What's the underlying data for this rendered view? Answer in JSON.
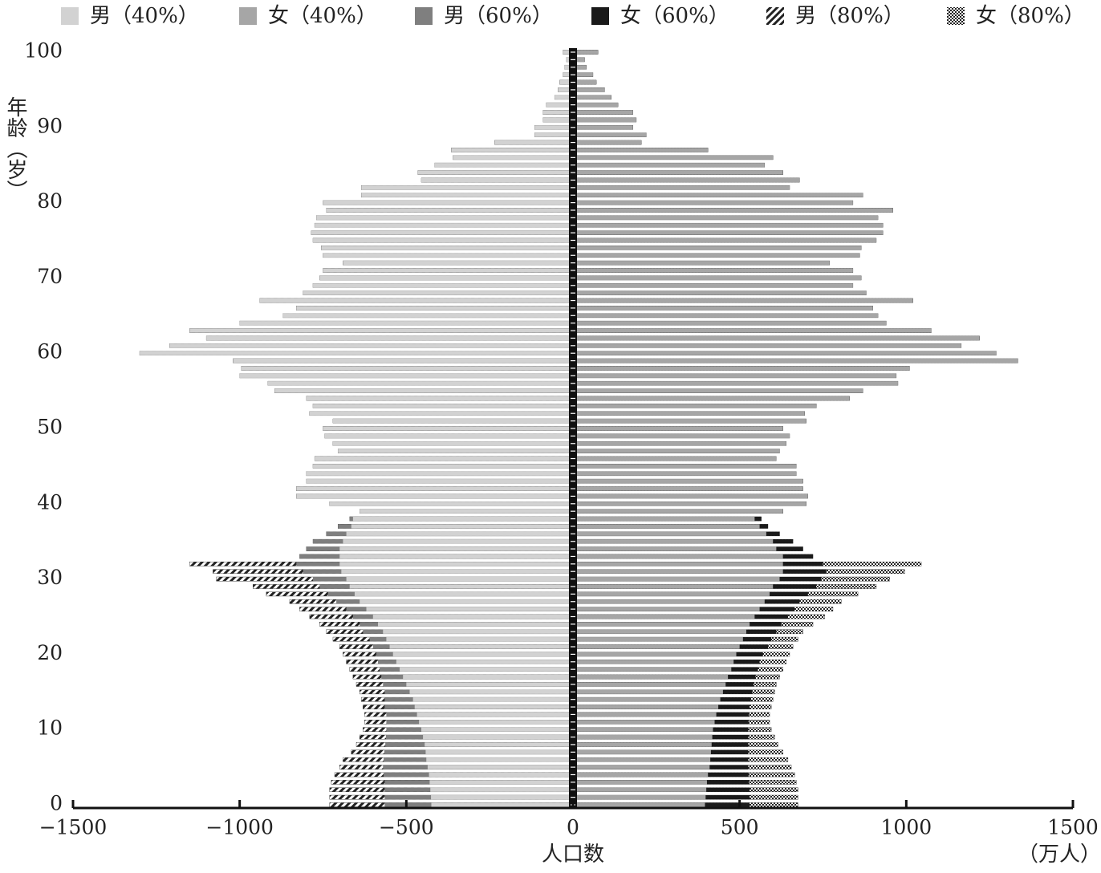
{
  "chart_data": {
    "type": "bar",
    "orientation": "horizontal",
    "y_label": "年龄（岁）",
    "x_label": "人口数",
    "x_unit": "（万人）",
    "xlim": [
      -1500,
      1500
    ],
    "xticks": [
      {
        "value": -1500,
        "label": "−1500"
      },
      {
        "value": -1000,
        "label": "−1000"
      },
      {
        "value": -500,
        "label": "−500"
      },
      0,
      500,
      1000,
      1500
    ],
    "ylim": [
      0,
      100
    ],
    "yticks": [
      0,
      10,
      20,
      30,
      40,
      50,
      60,
      70,
      80,
      90,
      100
    ],
    "y": [
      0,
      1,
      2,
      3,
      4,
      5,
      6,
      7,
      8,
      9,
      10,
      11,
      12,
      13,
      14,
      15,
      16,
      17,
      18,
      19,
      20,
      21,
      22,
      23,
      24,
      25,
      26,
      27,
      28,
      29,
      30,
      31,
      32,
      33,
      34,
      35,
      36,
      37,
      38,
      39,
      40,
      41,
      42,
      43,
      44,
      45,
      46,
      47,
      48,
      49,
      50,
      51,
      52,
      53,
      54,
      55,
      56,
      57,
      58,
      59,
      60,
      61,
      62,
      63,
      64,
      65,
      66,
      67,
      68,
      69,
      70,
      71,
      72,
      73,
      74,
      75,
      76,
      77,
      78,
      79,
      80,
      81,
      82,
      83,
      84,
      85,
      86,
      87,
      88,
      89,
      90,
      91,
      92,
      93,
      94,
      95,
      96,
      97,
      98,
      99,
      100
    ],
    "series": [
      {
        "name": "男（40%）",
        "color": "#d2d2d2",
        "pattern": "solid",
        "values": [
          -425,
          -426,
          -428,
          -430,
          -432,
          -436,
          -440,
          -442,
          -445,
          -450,
          -455,
          -462,
          -468,
          -475,
          -480,
          -490,
          -500,
          -510,
          -520,
          -530,
          -540,
          -550,
          -560,
          -570,
          -585,
          -600,
          -620,
          -640,
          -655,
          -670,
          -680,
          -695,
          -700,
          -700,
          -700,
          -690,
          -680,
          -665,
          -660,
          -640,
          -730,
          -830,
          -830,
          -800,
          -800,
          -780,
          -775,
          -705,
          -720,
          -745,
          -750,
          -720,
          -790,
          -780,
          -800,
          -895,
          -915,
          -1000,
          -995,
          -1020,
          -1300,
          -1210,
          -1100,
          -1150,
          -1000,
          -870,
          -830,
          -940,
          -810,
          -780,
          -760,
          -750,
          -690,
          -750,
          -755,
          -780,
          -785,
          -775,
          -770,
          -740,
          -750,
          -635,
          -635,
          -455,
          -465,
          -415,
          -360,
          -365,
          -235,
          -115,
          -115,
          -90,
          -90,
          -80,
          -55,
          -45,
          -40,
          -30,
          -25,
          -20,
          -30
        ]
      },
      {
        "name": "女（40%）",
        "color": "#a6a6a6",
        "pattern": "solid",
        "values": [
          396,
          398,
          400,
          402,
          405,
          410,
          412,
          414,
          416,
          418,
          420,
          425,
          430,
          436,
          442,
          450,
          458,
          465,
          475,
          482,
          490,
          500,
          510,
          520,
          530,
          545,
          560,
          575,
          590,
          600,
          620,
          630,
          630,
          630,
          610,
          600,
          580,
          560,
          545,
          630,
          700,
          705,
          690,
          690,
          670,
          670,
          610,
          620,
          640,
          650,
          630,
          700,
          695,
          730,
          830,
          870,
          975,
          970,
          1010,
          1335,
          1270,
          1165,
          1220,
          1075,
          940,
          915,
          900,
          1020,
          880,
          840,
          865,
          840,
          770,
          860,
          865,
          910,
          930,
          930,
          915,
          960,
          840,
          870,
          650,
          680,
          630,
          575,
          600,
          405,
          205,
          220,
          180,
          190,
          180,
          135,
          115,
          95,
          70,
          60,
          40,
          35,
          75
        ]
      },
      {
        "name": "男（60%）",
        "color": "#7f7f7f",
        "pattern": "solid",
        "values": [
          -565,
          -565,
          -565,
          -565,
          -568,
          -570,
          -568,
          -566,
          -563,
          -561,
          -560,
          -560,
          -560,
          -565,
          -565,
          -565,
          -570,
          -575,
          -580,
          -585,
          -590,
          -600,
          -610,
          -630,
          -640,
          -660,
          -680,
          -710,
          -735,
          -760,
          -780,
          -810,
          -830,
          -820,
          -800,
          -780,
          -740,
          -705,
          -670,
          -640,
          -730,
          -830,
          -830,
          -800,
          -800,
          -780,
          -775,
          -705,
          -720,
          -745,
          -750,
          -720,
          -790,
          -780,
          -800,
          -895,
          -915,
          -1000,
          -995,
          -1020,
          -1300,
          -1210,
          -1100,
          -1150,
          -1000,
          -870,
          -830,
          -940,
          -810,
          -780,
          -760,
          -750,
          -690,
          -750,
          -755,
          -780,
          -785,
          -775,
          -770,
          -740,
          -750,
          -635,
          -635,
          -455,
          -465,
          -415,
          -360,
          -365,
          -235,
          -115,
          -115,
          -90,
          -90,
          -80,
          -55,
          -45,
          -40,
          -30,
          -25,
          -20,
          -30
        ]
      },
      {
        "name": "女（60%）",
        "color": "#1a1a1a",
        "pattern": "solid",
        "values": [
          530,
          530,
          530,
          528,
          527,
          526,
          526,
          526,
          526,
          526,
          526,
          527,
          528,
          530,
          534,
          538,
          542,
          548,
          555,
          560,
          570,
          585,
          595,
          610,
          625,
          645,
          665,
          680,
          705,
          730,
          745,
          760,
          750,
          720,
          690,
          660,
          620,
          585,
          565,
          630,
          700,
          705,
          690,
          690,
          670,
          670,
          610,
          620,
          640,
          650,
          630,
          700,
          695,
          730,
          830,
          870,
          975,
          970,
          1010,
          1335,
          1270,
          1165,
          1220,
          1075,
          940,
          915,
          900,
          1020,
          880,
          840,
          865,
          840,
          770,
          860,
          865,
          910,
          930,
          930,
          915,
          960,
          840,
          870,
          650,
          680,
          630,
          575,
          600,
          405,
          205,
          220,
          180,
          190,
          180,
          135,
          115,
          95,
          70,
          60,
          40,
          35,
          75
        ]
      },
      {
        "name": "男（80%）",
        "color": "#222222",
        "pattern": "hatch",
        "values": [
          -730,
          -730,
          -730,
          -725,
          -715,
          -700,
          -690,
          -665,
          -650,
          -640,
          -630,
          -625,
          -625,
          -630,
          -635,
          -640,
          -650,
          -660,
          -670,
          -680,
          -690,
          -700,
          -720,
          -740,
          -760,
          -790,
          -820,
          -850,
          -920,
          -960,
          -1070,
          -1080,
          -1150,
          -820,
          -800,
          -780,
          -740,
          -705,
          -670,
          -640,
          -730,
          -830,
          -830,
          -800,
          -800,
          -780,
          -775,
          -705,
          -720,
          -745,
          -750,
          -720,
          -790,
          -780,
          -800,
          -895,
          -915,
          -1000,
          -995,
          -1020,
          -1300,
          -1210,
          -1100,
          -1150,
          -1000,
          -870,
          -830,
          -940,
          -810,
          -780,
          -760,
          -750,
          -690,
          -750,
          -755,
          -780,
          -785,
          -775,
          -770,
          -740,
          -750,
          -635,
          -635,
          -455,
          -465,
          -415,
          -360,
          -365,
          -235,
          -115,
          -115,
          -90,
          -90,
          -80,
          -55,
          -45,
          -40,
          -30,
          -25,
          -20,
          -30
        ]
      },
      {
        "name": "女（80%）",
        "color": "#222222",
        "pattern": "checker",
        "values": [
          675,
          675,
          675,
          670,
          665,
          655,
          645,
          630,
          615,
          605,
          595,
          590,
          590,
          595,
          600,
          605,
          610,
          620,
          630,
          640,
          650,
          660,
          675,
          690,
          720,
          755,
          780,
          805,
          855,
          910,
          950,
          995,
          1045,
          720,
          690,
          660,
          620,
          585,
          565,
          630,
          700,
          705,
          690,
          690,
          670,
          670,
          610,
          620,
          640,
          650,
          630,
          700,
          695,
          730,
          830,
          870,
          975,
          970,
          1010,
          1335,
          1270,
          1165,
          1220,
          1075,
          940,
          915,
          900,
          1020,
          880,
          840,
          865,
          840,
          770,
          860,
          865,
          910,
          930,
          930,
          915,
          960,
          840,
          870,
          650,
          680,
          630,
          575,
          600,
          405,
          205,
          220,
          180,
          190,
          180,
          135,
          115,
          95,
          70,
          60,
          40,
          35,
          75
        ]
      }
    ]
  }
}
